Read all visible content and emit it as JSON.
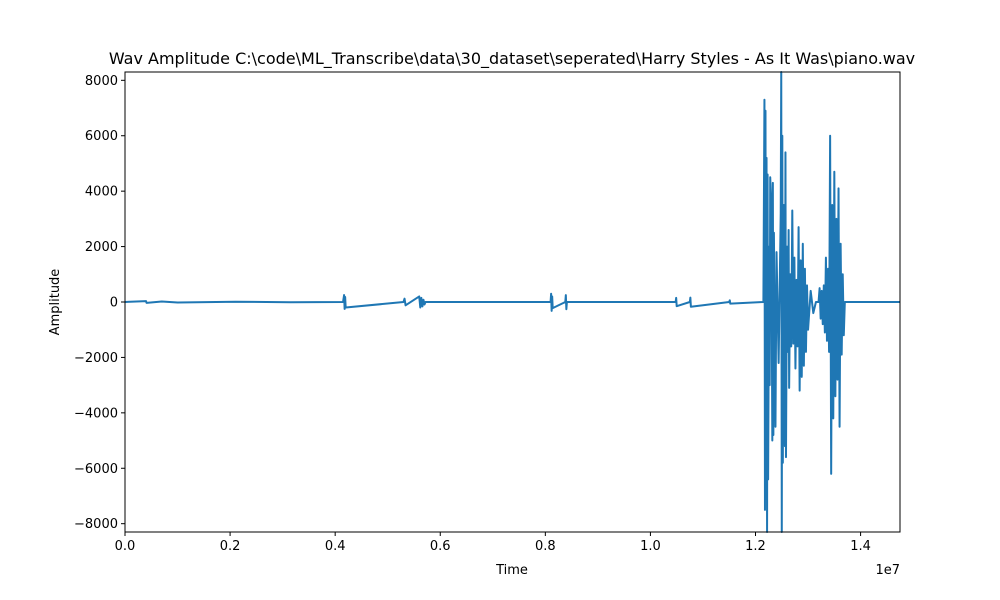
{
  "chart_data": {
    "type": "line",
    "title": "Wav Amplitude C:\\code\\ML_Transcribe\\data\\30_dataset\\seperated\\Harry Styles - As It Was\\piano.wav",
    "xlabel": "Time",
    "ylabel": "Amplitude",
    "x_offset_label": "1e7",
    "xlim": [
      0,
      14750000
    ],
    "ylim": [
      -8300,
      8300
    ],
    "x_ticks": [
      0,
      2000000,
      4000000,
      6000000,
      8000000,
      10000000,
      12000000,
      14000000
    ],
    "x_tick_labels": [
      "0.0",
      "0.2",
      "0.4",
      "0.6",
      "0.8",
      "1.0",
      "1.2",
      "1.4"
    ],
    "y_ticks": [
      -8000,
      -6000,
      -4000,
      -2000,
      0,
      2000,
      4000,
      6000,
      8000
    ],
    "y_tick_labels": [
      "−8000",
      "−6000",
      "−4000",
      "−2000",
      "0",
      "2000",
      "4000",
      "6000",
      "8000"
    ],
    "line_color": "#1f77b4",
    "grid": false,
    "series": [
      {
        "x": [
          0,
          400000,
          410000,
          700000,
          1000000,
          2100000,
          3150000,
          4150000,
          4170000,
          4180000,
          4190000,
          4200000,
          5300000,
          5320000,
          5340000,
          5600000,
          5620000,
          5640000,
          5660000,
          5680000,
          5700000,
          5720000,
          6300000,
          7350000,
          8100000,
          8110000,
          8120000,
          8130000,
          8140000,
          8380000,
          8390000,
          8400000,
          8410000,
          9430000,
          10480000,
          10490000,
          10500000,
          10750000,
          10760000,
          10770000,
          11500000,
          11510000,
          11520000,
          12150000,
          12170000,
          12180000,
          12190000,
          12200000,
          12210000,
          12220000,
          12230000,
          12240000,
          12260000,
          12270000,
          12280000,
          12300000,
          12320000,
          12330000,
          12340000,
          12350000,
          12380000,
          12400000,
          12440000,
          12480000,
          12490000,
          12500000,
          12510000,
          12520000,
          12540000,
          12560000,
          12570000,
          12580000,
          12600000,
          12620000,
          12630000,
          12640000,
          12660000,
          12680000,
          12700000,
          12720000,
          12740000,
          12760000,
          12780000,
          12800000,
          12820000,
          12840000,
          12860000,
          12880000,
          12900000,
          12920000,
          12940000,
          12960000,
          12980000,
          13000000,
          13050000,
          13100000,
          13150000,
          13200000,
          13220000,
          13240000,
          13260000,
          13280000,
          13300000,
          13320000,
          13340000,
          13360000,
          13380000,
          13400000,
          13420000,
          13440000,
          13460000,
          13480000,
          13500000,
          13520000,
          13540000,
          13560000,
          13580000,
          13600000,
          13620000,
          13640000,
          13660000,
          13680000,
          13700000,
          14000000,
          14750000
        ],
        "y": [
          0,
          30,
          -30,
          20,
          -20,
          10,
          -10,
          0,
          250,
          -250,
          180,
          -200,
          0,
          120,
          -120,
          200,
          -200,
          150,
          -160,
          80,
          -90,
          0,
          0,
          0,
          0,
          300,
          -320,
          200,
          -220,
          0,
          250,
          -260,
          0,
          0,
          0,
          150,
          -150,
          0,
          160,
          -170,
          0,
          60,
          -60,
          0,
          7300,
          -7500,
          6900,
          -7100,
          5200,
          -8300,
          4600,
          -6400,
          2000,
          -3000,
          4500,
          3500,
          -5000,
          4300,
          -4800,
          2500,
          -4500,
          1800,
          -2200,
          3200,
          8300,
          -8300,
          6000,
          -5800,
          3500,
          -5200,
          5400,
          -5600,
          2000,
          -1800,
          2600,
          -3100,
          1000,
          -1600,
          3300,
          -1500,
          1600,
          -2400,
          800,
          -1600,
          2700,
          -3200,
          1500,
          -2700,
          2100,
          -2300,
          1200,
          -1800,
          600,
          -1000,
          400,
          -400,
          0,
          0,
          500,
          -600,
          400,
          -800,
          600,
          -1100,
          1600,
          -1400,
          1200,
          -1800,
          6000,
          -6200,
          3500,
          -4200,
          4700,
          -3400,
          3000,
          -2800,
          4100,
          -4500,
          2100,
          -1900,
          1000,
          -1200,
          0,
          0,
          0
        ]
      }
    ]
  }
}
